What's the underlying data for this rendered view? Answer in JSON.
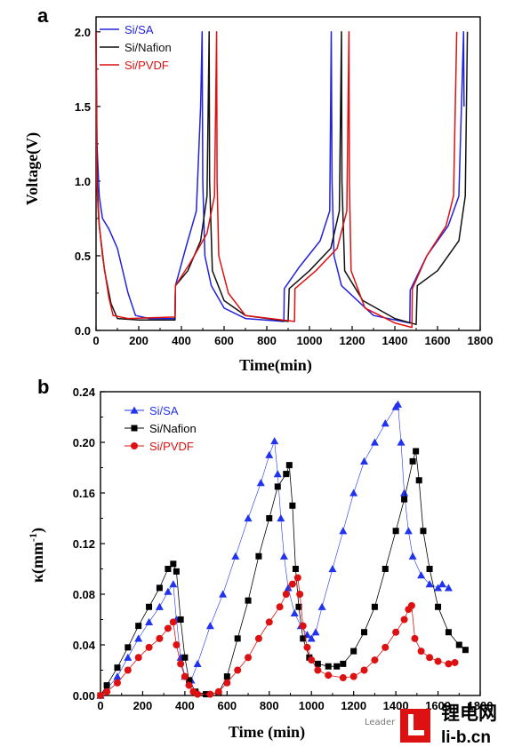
{
  "chart_data": [
    {
      "panel": "a",
      "type": "line",
      "ylabel": "Voltage(V)",
      "xlabel": "Time(min)",
      "xlim": [
        0,
        1800
      ],
      "ylim": [
        0,
        2.1
      ],
      "xticks": [
        "0",
        "200",
        "400",
        "600",
        "800",
        "1000",
        "1200",
        "1400",
        "1600",
        "1800"
      ],
      "xtick_values": [
        0,
        200,
        400,
        600,
        800,
        1000,
        1200,
        1400,
        1600,
        1800
      ],
      "yticks": [
        "0.0",
        "0.5",
        "1.0",
        "1.5",
        "2.0"
      ],
      "ytick_values": [
        0,
        0.5,
        1.0,
        1.5,
        2.0
      ],
      "legend_position": "top-left",
      "series": [
        {
          "name": "Si/SA",
          "color": "#2222dd",
          "points": [
            [
              0,
              2.0
            ],
            [
              4,
              1.25
            ],
            [
              15,
              0.9
            ],
            [
              30,
              0.75
            ],
            [
              60,
              0.68
            ],
            [
              100,
              0.55
            ],
            [
              150,
              0.25
            ],
            [
              185,
              0.1
            ],
            [
              250,
              0.08
            ],
            [
              370,
              0.08
            ],
            [
              372,
              0.3
            ],
            [
              420,
              0.55
            ],
            [
              470,
              0.8
            ],
            [
              490,
              1.5
            ],
            [
              497,
              2.0
            ],
            [
              500,
              1.0
            ],
            [
              510,
              0.5
            ],
            [
              540,
              0.3
            ],
            [
              600,
              0.15
            ],
            [
              700,
              0.08
            ],
            [
              880,
              0.06
            ],
            [
              882,
              0.28
            ],
            [
              950,
              0.42
            ],
            [
              1050,
              0.6
            ],
            [
              1095,
              0.8
            ],
            [
              1102,
              2.0
            ],
            [
              1106,
              1.0
            ],
            [
              1115,
              0.5
            ],
            [
              1150,
              0.3
            ],
            [
              1300,
              0.1
            ],
            [
              1470,
              0.05
            ],
            [
              1472,
              0.27
            ],
            [
              1550,
              0.5
            ],
            [
              1650,
              0.7
            ],
            [
              1700,
              0.9
            ],
            [
              1722,
              2.0
            ],
            [
              1724,
              1.5
            ]
          ]
        },
        {
          "name": "Si/Nafion",
          "color": "#111111",
          "points": [
            [
              0,
              2.0
            ],
            [
              5,
              1.0
            ],
            [
              15,
              0.7
            ],
            [
              40,
              0.4
            ],
            [
              70,
              0.18
            ],
            [
              100,
              0.08
            ],
            [
              200,
              0.07
            ],
            [
              370,
              0.07
            ],
            [
              372,
              0.3
            ],
            [
              430,
              0.4
            ],
            [
              490,
              0.6
            ],
            [
              520,
              0.9
            ],
            [
              530,
              2.0
            ],
            [
              532,
              1.0
            ],
            [
              545,
              0.4
            ],
            [
              600,
              0.2
            ],
            [
              700,
              0.1
            ],
            [
              900,
              0.06
            ],
            [
              905,
              0.28
            ],
            [
              1000,
              0.4
            ],
            [
              1100,
              0.55
            ],
            [
              1140,
              0.8
            ],
            [
              1150,
              2.0
            ],
            [
              1152,
              1.0
            ],
            [
              1165,
              0.4
            ],
            [
              1250,
              0.2
            ],
            [
              1400,
              0.08
            ],
            [
              1500,
              0.04
            ],
            [
              1505,
              0.3
            ],
            [
              1600,
              0.4
            ],
            [
              1700,
              0.6
            ],
            [
              1730,
              0.9
            ],
            [
              1740,
              2.0
            ]
          ]
        },
        {
          "name": "Si/PVDF",
          "color": "#dd1111",
          "points": [
            [
              0,
              2.0
            ],
            [
              3,
              1.0
            ],
            [
              12,
              0.75
            ],
            [
              30,
              0.5
            ],
            [
              60,
              0.22
            ],
            [
              80,
              0.1
            ],
            [
              150,
              0.08
            ],
            [
              370,
              0.09
            ],
            [
              372,
              0.3
            ],
            [
              440,
              0.45
            ],
            [
              520,
              0.65
            ],
            [
              555,
              0.9
            ],
            [
              565,
              2.0
            ],
            [
              567,
              1.0
            ],
            [
              575,
              0.5
            ],
            [
              620,
              0.25
            ],
            [
              700,
              0.1
            ],
            [
              930,
              0.06
            ],
            [
              932,
              0.28
            ],
            [
              1030,
              0.4
            ],
            [
              1130,
              0.55
            ],
            [
              1175,
              0.8
            ],
            [
              1185,
              2.0
            ],
            [
              1187,
              1.0
            ],
            [
              1195,
              0.4
            ],
            [
              1260,
              0.15
            ],
            [
              1400,
              0.05
            ],
            [
              1480,
              0.02
            ],
            [
              1482,
              0.28
            ],
            [
              1550,
              0.5
            ],
            [
              1640,
              0.7
            ],
            [
              1675,
              0.9
            ],
            [
              1690,
              2.0
            ]
          ]
        }
      ]
    },
    {
      "panel": "b",
      "type": "scatter",
      "ylabel_main": "κ(mm",
      "ylabel_exp": "-1",
      "ylabel_end": ")",
      "xlabel": "Time (min)",
      "xlim": [
        0,
        1800
      ],
      "ylim": [
        0,
        0.24
      ],
      "xticks": [
        "0",
        "200",
        "400",
        "600",
        "800",
        "1000",
        "1200",
        "1400",
        "1600",
        "1800"
      ],
      "xtick_values": [
        0,
        200,
        400,
        600,
        800,
        1000,
        1200,
        1400,
        1600,
        1800
      ],
      "yticks": [
        "0.00",
        "0.04",
        "0.08",
        "0.12",
        "0.16",
        "0.20",
        "0.24"
      ],
      "ytick_values": [
        0,
        0.04,
        0.08,
        0.12,
        0.16,
        0.2,
        0.24
      ],
      "legend_position": "top-left",
      "series": [
        {
          "name": "Si/SA",
          "color": "#2233ee",
          "marker": "triangle",
          "line_width": 0.6,
          "points": [
            [
              0,
              0
            ],
            [
              30,
              0.005
            ],
            [
              80,
              0.015
            ],
            [
              130,
              0.03
            ],
            [
              180,
              0.045
            ],
            [
              230,
              0.058
            ],
            [
              280,
              0.07
            ],
            [
              320,
              0.082
            ],
            [
              345,
              0.088
            ],
            [
              360,
              0.06
            ],
            [
              380,
              0.03
            ],
            [
              400,
              0.015
            ],
            [
              420,
              0.01
            ],
            [
              430,
              0.012
            ],
            [
              460,
              0.025
            ],
            [
              520,
              0.055
            ],
            [
              580,
              0.08
            ],
            [
              640,
              0.11
            ],
            [
              700,
              0.14
            ],
            [
              760,
              0.168
            ],
            [
              800,
              0.19
            ],
            [
              825,
              0.201
            ],
            [
              840,
              0.175
            ],
            [
              855,
              0.14
            ],
            [
              870,
              0.11
            ],
            [
              890,
              0.085
            ],
            [
              920,
              0.065
            ],
            [
              950,
              0.055
            ],
            [
              980,
              0.048
            ],
            [
              1000,
              0.045
            ],
            [
              1020,
              0.05
            ],
            [
              1050,
              0.07
            ],
            [
              1100,
              0.1
            ],
            [
              1150,
              0.13
            ],
            [
              1200,
              0.16
            ],
            [
              1250,
              0.185
            ],
            [
              1300,
              0.2
            ],
            [
              1350,
              0.215
            ],
            [
              1400,
              0.228
            ],
            [
              1410,
              0.23
            ],
            [
              1425,
              0.2
            ],
            [
              1440,
              0.16
            ],
            [
              1460,
              0.13
            ],
            [
              1480,
              0.11
            ],
            [
              1520,
              0.095
            ],
            [
              1560,
              0.088
            ],
            [
              1600,
              0.085
            ],
            [
              1620,
              0.088
            ],
            [
              1650,
              0.085
            ]
          ]
        },
        {
          "name": "Si/Nafion",
          "color": "#000000",
          "marker": "square",
          "line_width": 0.8,
          "points": [
            [
              0,
              0
            ],
            [
              30,
              0.008
            ],
            [
              80,
              0.022
            ],
            [
              130,
              0.038
            ],
            [
              180,
              0.055
            ],
            [
              230,
              0.07
            ],
            [
              280,
              0.085
            ],
            [
              320,
              0.1
            ],
            [
              345,
              0.104
            ],
            [
              360,
              0.098
            ],
            [
              380,
              0.06
            ],
            [
              400,
              0.03
            ],
            [
              420,
              0.012
            ],
            [
              450,
              0.003
            ],
            [
              500,
              0.001
            ],
            [
              560,
              0.002
            ],
            [
              600,
              0.015
            ],
            [
              650,
              0.045
            ],
            [
              700,
              0.075
            ],
            [
              750,
              0.11
            ],
            [
              800,
              0.14
            ],
            [
              840,
              0.165
            ],
            [
              880,
              0.175
            ],
            [
              895,
              0.182
            ],
            [
              910,
              0.15
            ],
            [
              925,
              0.1
            ],
            [
              940,
              0.07
            ],
            [
              960,
              0.045
            ],
            [
              990,
              0.03
            ],
            [
              1030,
              0.025
            ],
            [
              1080,
              0.023
            ],
            [
              1120,
              0.023
            ],
            [
              1150,
              0.025
            ],
            [
              1200,
              0.035
            ],
            [
              1250,
              0.05
            ],
            [
              1300,
              0.07
            ],
            [
              1350,
              0.1
            ],
            [
              1400,
              0.13
            ],
            [
              1440,
              0.155
            ],
            [
              1480,
              0.185
            ],
            [
              1495,
              0.193
            ],
            [
              1510,
              0.17
            ],
            [
              1530,
              0.13
            ],
            [
              1560,
              0.1
            ],
            [
              1600,
              0.07
            ],
            [
              1650,
              0.05
            ],
            [
              1700,
              0.04
            ],
            [
              1730,
              0.036
            ]
          ]
        },
        {
          "name": "Si/PVDF",
          "color": "#dd1111",
          "marker": "circle",
          "line_width": 0.8,
          "points": [
            [
              0,
              0
            ],
            [
              30,
              0.003
            ],
            [
              80,
              0.01
            ],
            [
              130,
              0.02
            ],
            [
              180,
              0.03
            ],
            [
              230,
              0.038
            ],
            [
              280,
              0.045
            ],
            [
              320,
              0.053
            ],
            [
              345,
              0.058
            ],
            [
              360,
              0.04
            ],
            [
              380,
              0.025
            ],
            [
              400,
              0.015
            ],
            [
              420,
              0.008
            ],
            [
              440,
              0.003
            ],
            [
              460,
              0.001
            ],
            [
              520,
              0.001
            ],
            [
              560,
              0.003
            ],
            [
              600,
              0.01
            ],
            [
              650,
              0.02
            ],
            [
              700,
              0.03
            ],
            [
              750,
              0.045
            ],
            [
              800,
              0.058
            ],
            [
              850,
              0.07
            ],
            [
              880,
              0.08
            ],
            [
              910,
              0.088
            ],
            [
              935,
              0.093
            ],
            [
              945,
              0.08
            ],
            [
              960,
              0.055
            ],
            [
              980,
              0.038
            ],
            [
              1000,
              0.028
            ],
            [
              1030,
              0.02
            ],
            [
              1080,
              0.016
            ],
            [
              1150,
              0.014
            ],
            [
              1200,
              0.015
            ],
            [
              1250,
              0.02
            ],
            [
              1300,
              0.028
            ],
            [
              1350,
              0.038
            ],
            [
              1400,
              0.05
            ],
            [
              1440,
              0.06
            ],
            [
              1460,
              0.068
            ],
            [
              1475,
              0.071
            ],
            [
              1490,
              0.045
            ],
            [
              1520,
              0.035
            ],
            [
              1560,
              0.03
            ],
            [
              1600,
              0.027
            ],
            [
              1650,
              0.025
            ],
            [
              1680,
              0.026
            ]
          ]
        }
      ]
    }
  ],
  "watermark": {
    "chinese": "锂电网",
    "url": "li-b.cn",
    "small_text": "Leader",
    "logo_color": "#dd1111"
  }
}
